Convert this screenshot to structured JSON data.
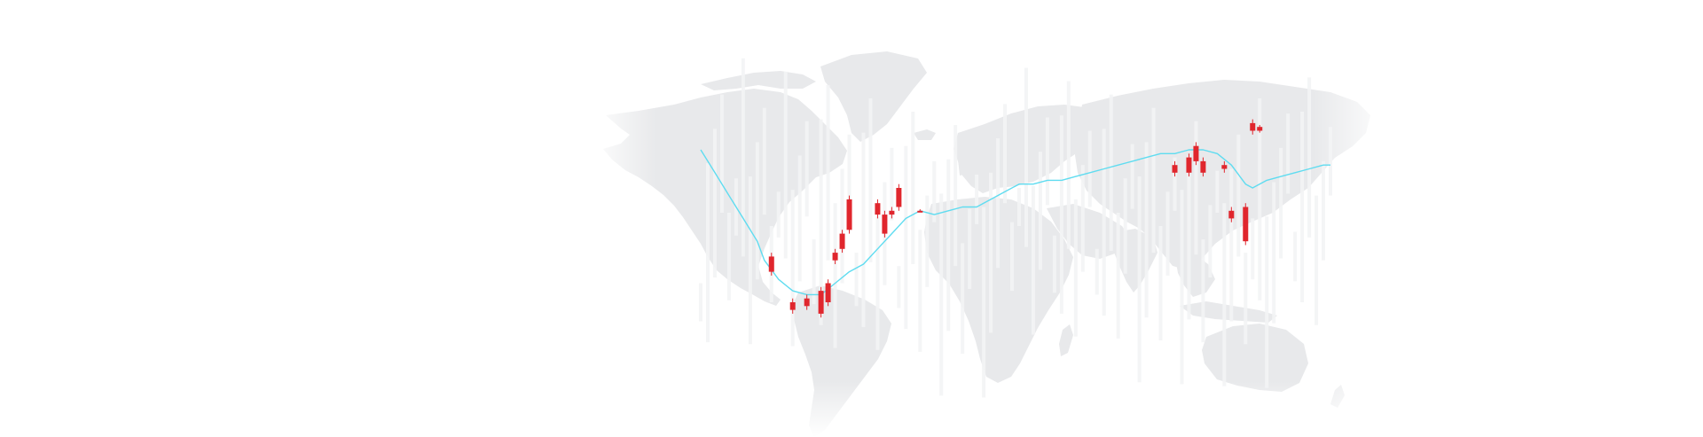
{
  "colors": {
    "background": "#ffffff",
    "map_land": "#e8e9eb",
    "candle_red": "#e0262d",
    "candle_ghost": "#f3f4f5",
    "trend_line": "#5fdcf0"
  },
  "chart_data": {
    "type": "candlestick",
    "title": "",
    "xlabel": "",
    "ylabel": "",
    "grid": false,
    "legend": "none",
    "background_image": "world-map",
    "ylim": [
      0,
      100
    ],
    "x": [
      1,
      2,
      3,
      4,
      5,
      6,
      7,
      8,
      9,
      10,
      11,
      12,
      13,
      14,
      15,
      16,
      17,
      18,
      19,
      20,
      21,
      22,
      23,
      24,
      25,
      26,
      27,
      28,
      29,
      30,
      31,
      32,
      33,
      34,
      35,
      36,
      37,
      38,
      39,
      40,
      41,
      42,
      43,
      44,
      45,
      46,
      47,
      48,
      49,
      50,
      51,
      52,
      53,
      54,
      55,
      56,
      57,
      58,
      59,
      60,
      61,
      62,
      63,
      64,
      65,
      66,
      67,
      68,
      69,
      70,
      71,
      72,
      73,
      74,
      75,
      76,
      77,
      78,
      79,
      80,
      81,
      82,
      83,
      84,
      85,
      86,
      87,
      88,
      89,
      90
    ],
    "candles": [
      {
        "x": 11,
        "open": 42,
        "close": 38,
        "high": 43,
        "low": 37
      },
      {
        "x": 14,
        "open": 30,
        "close": 28,
        "high": 31,
        "low": 27
      },
      {
        "x": 16,
        "open": 31,
        "close": 29,
        "high": 32,
        "low": 28
      },
      {
        "x": 18,
        "open": 33,
        "close": 27,
        "high": 34,
        "low": 26
      },
      {
        "x": 19,
        "open": 35,
        "close": 30,
        "high": 36,
        "low": 29
      },
      {
        "x": 20,
        "open": 43,
        "close": 41,
        "high": 44,
        "low": 40
      },
      {
        "x": 21,
        "open": 48,
        "close": 44,
        "high": 49,
        "low": 43
      },
      {
        "x": 22,
        "open": 57,
        "close": 49,
        "high": 58,
        "low": 48
      },
      {
        "x": 26,
        "open": 56,
        "close": 53,
        "high": 57,
        "low": 52
      },
      {
        "x": 27,
        "open": 53,
        "close": 48,
        "high": 54,
        "low": 47
      },
      {
        "x": 28,
        "open": 54,
        "close": 53,
        "high": 55,
        "low": 52
      },
      {
        "x": 29,
        "open": 60,
        "close": 55,
        "high": 61,
        "low": 54
      },
      {
        "x": 32,
        "open": 54,
        "close": 54,
        "high": 54.4,
        "low": 53.6
      },
      {
        "x": 68,
        "open": 66,
        "close": 64,
        "high": 67,
        "low": 63
      },
      {
        "x": 70,
        "open": 68,
        "close": 64,
        "high": 69,
        "low": 63
      },
      {
        "x": 71,
        "open": 71,
        "close": 67,
        "high": 72,
        "low": 66
      },
      {
        "x": 72,
        "open": 67,
        "close": 64,
        "high": 68,
        "low": 63
      },
      {
        "x": 75,
        "open": 66,
        "close": 65,
        "high": 67,
        "low": 64
      },
      {
        "x": 76,
        "open": 54,
        "close": 52,
        "high": 55,
        "low": 51
      },
      {
        "x": 78,
        "open": 55,
        "close": 46,
        "high": 56,
        "low": 45
      },
      {
        "x": 79,
        "open": 77,
        "close": 75,
        "high": 78,
        "low": 74
      },
      {
        "x": 80,
        "open": 76,
        "close": 75,
        "high": 76.5,
        "low": 74.5
      }
    ],
    "trend_line": [
      [
        1,
        70
      ],
      [
        3,
        64
      ],
      [
        5,
        58
      ],
      [
        7,
        52
      ],
      [
        9,
        46
      ],
      [
        10,
        41
      ],
      [
        12,
        36
      ],
      [
        14,
        33
      ],
      [
        16,
        32
      ],
      [
        18,
        32
      ],
      [
        20,
        35
      ],
      [
        22,
        38
      ],
      [
        24,
        40
      ],
      [
        26,
        44
      ],
      [
        28,
        48
      ],
      [
        30,
        52
      ],
      [
        32,
        54
      ],
      [
        34,
        53
      ],
      [
        36,
        54
      ],
      [
        38,
        55
      ],
      [
        40,
        55
      ],
      [
        42,
        57
      ],
      [
        44,
        59
      ],
      [
        46,
        61
      ],
      [
        48,
        61
      ],
      [
        50,
        62
      ],
      [
        52,
        62
      ],
      [
        54,
        63
      ],
      [
        56,
        64
      ],
      [
        58,
        65
      ],
      [
        60,
        66
      ],
      [
        62,
        67
      ],
      [
        64,
        68
      ],
      [
        66,
        69
      ],
      [
        68,
        69
      ],
      [
        70,
        70
      ],
      [
        72,
        70
      ],
      [
        74,
        69
      ],
      [
        76,
        66
      ],
      [
        78,
        61
      ],
      [
        79,
        60
      ],
      [
        81,
        62
      ],
      [
        83,
        63
      ],
      [
        85,
        64
      ],
      [
        87,
        65
      ],
      [
        89,
        66
      ],
      [
        90,
        66
      ]
    ]
  }
}
